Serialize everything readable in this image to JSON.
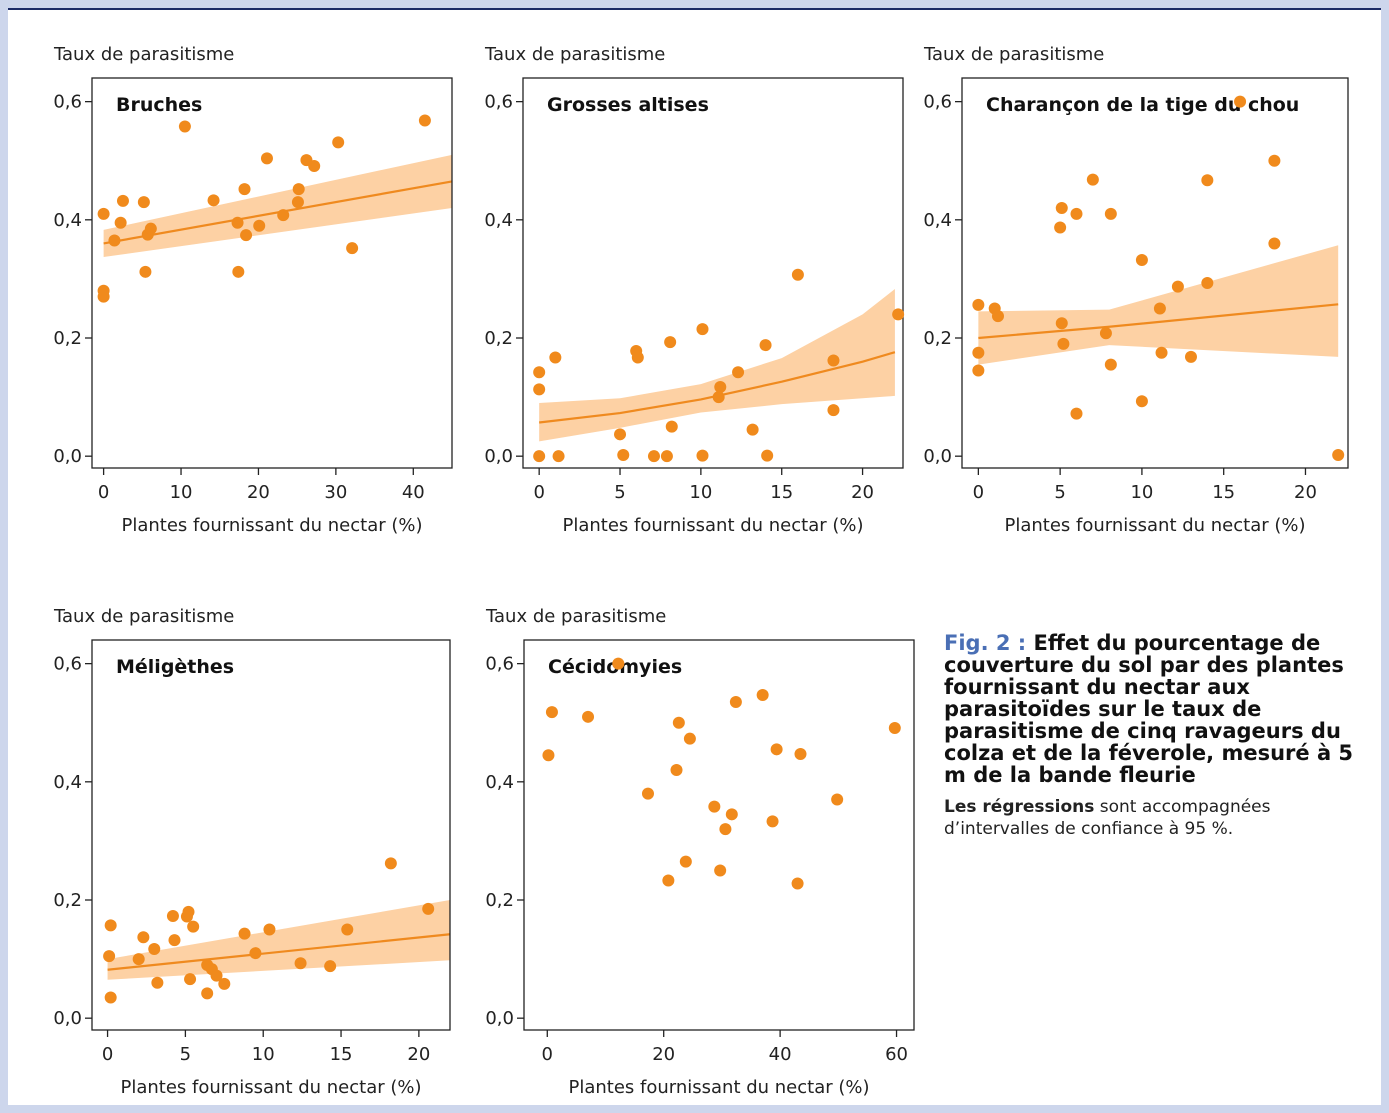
{
  "caption": {
    "label": "Fig. 2 :",
    "title": "Effet du pourcentage de couverture du sol par des plantes fournissant du nectar aux parasitoïdes sur le taux de parasitisme de cinq ravageurs du colza et de la féverole, mesuré à 5 m de la bande fleurie",
    "note_bold": "Les régressions",
    "note_rest": " sont accompagnées d’intervalles de confiance à 95 %."
  },
  "colors": {
    "points": "#f08a1c",
    "line": "#ef8a1f",
    "band": "#fdd1a4",
    "axis": "#222222"
  },
  "chart_data": [
    {
      "type": "scatter",
      "title": "Bruches",
      "ylabel": "Taux de parasitisme",
      "xlabel": "Plantes fournissant du nectar (%)",
      "xlim": [
        -1.5,
        45
      ],
      "ylim": [
        -0.02,
        0.64
      ],
      "xticks": [
        0,
        10,
        20,
        30,
        40
      ],
      "yticks": [
        0.0,
        0.2,
        0.4,
        0.6
      ],
      "ytick_labels": [
        "0,0",
        "0,2",
        "0,4",
        "0,6"
      ],
      "points": [
        [
          0,
          0.41
        ],
        [
          0,
          0.28
        ],
        [
          0,
          0.27
        ],
        [
          1.4,
          0.365
        ],
        [
          2.2,
          0.395
        ],
        [
          2.5,
          0.432
        ],
        [
          5.2,
          0.43
        ],
        [
          5.4,
          0.312
        ],
        [
          5.7,
          0.375
        ],
        [
          6.1,
          0.385
        ],
        [
          10.5,
          0.558
        ],
        [
          14.2,
          0.433
        ],
        [
          17.3,
          0.395
        ],
        [
          17.4,
          0.312
        ],
        [
          18.2,
          0.452
        ],
        [
          18.4,
          0.374
        ],
        [
          20.1,
          0.39
        ],
        [
          21.1,
          0.504
        ],
        [
          23.2,
          0.408
        ],
        [
          25.1,
          0.43
        ],
        [
          25.2,
          0.452
        ],
        [
          26.2,
          0.501
        ],
        [
          27.2,
          0.491
        ],
        [
          30.3,
          0.531
        ],
        [
          32.1,
          0.352
        ],
        [
          41.5,
          0.568
        ]
      ],
      "regression": {
        "x": [
          0,
          45
        ],
        "y": [
          0.36,
          0.465
        ],
        "lower": [
          0.337,
          0.42
        ],
        "upper": [
          0.383,
          0.51
        ]
      }
    },
    {
      "type": "scatter",
      "title": "Grosses altises",
      "ylabel": "Taux de parasitisme",
      "xlabel": "Plantes fournissant du nectar (%)",
      "xlim": [
        -1,
        22.5
      ],
      "ylim": [
        -0.02,
        0.64
      ],
      "xticks": [
        0,
        5,
        10,
        15,
        20
      ],
      "yticks": [
        0.0,
        0.2,
        0.4,
        0.6
      ],
      "ytick_labels": [
        "0,0",
        "0,2",
        "0,4",
        "0,6"
      ],
      "points": [
        [
          0,
          0.142
        ],
        [
          0,
          0.113
        ],
        [
          0,
          0.0
        ],
        [
          1,
          0.167
        ],
        [
          1.2,
          0.0
        ],
        [
          5,
          0.037
        ],
        [
          5.2,
          0.002
        ],
        [
          6,
          0.178
        ],
        [
          6.1,
          0.167
        ],
        [
          7.1,
          0.0
        ],
        [
          7.9,
          0.0
        ],
        [
          8.1,
          0.193
        ],
        [
          8.2,
          0.05
        ],
        [
          10.1,
          0.215
        ],
        [
          10.1,
          0.001
        ],
        [
          11.2,
          0.117
        ],
        [
          11.1,
          0.1
        ],
        [
          12.3,
          0.142
        ],
        [
          13.2,
          0.045
        ],
        [
          14,
          0.188
        ],
        [
          14.1,
          0.001
        ],
        [
          16,
          0.307
        ],
        [
          18.2,
          0.162
        ],
        [
          18.2,
          0.078
        ],
        [
          22.2,
          0.24
        ]
      ],
      "regression": {
        "x": [
          0,
          5,
          10,
          15,
          20,
          22
        ],
        "y": [
          0.057,
          0.073,
          0.096,
          0.126,
          0.16,
          0.176
        ],
        "lower": [
          0.025,
          0.048,
          0.074,
          0.088,
          0.098,
          0.102
        ],
        "upper": [
          0.09,
          0.098,
          0.122,
          0.166,
          0.24,
          0.283
        ]
      }
    },
    {
      "type": "scatter",
      "title": "Charançon de la tige du chou",
      "ylabel": "Taux de parasitisme",
      "xlabel": "Plantes fournissant du nectar (%)",
      "xlim": [
        -1,
        22.6
      ],
      "ylim": [
        -0.02,
        0.64
      ],
      "xticks": [
        0,
        5,
        10,
        15,
        20
      ],
      "yticks": [
        0.0,
        0.2,
        0.4,
        0.6
      ],
      "ytick_labels": [
        "0,0",
        "0,2",
        "0,4",
        "0,6"
      ],
      "points": [
        [
          0,
          0.256
        ],
        [
          0,
          0.175
        ],
        [
          0,
          0.145
        ],
        [
          1,
          0.25
        ],
        [
          1.2,
          0.237
        ],
        [
          5,
          0.387
        ],
        [
          5.1,
          0.42
        ],
        [
          5.1,
          0.225
        ],
        [
          5.2,
          0.19
        ],
        [
          6,
          0.41
        ],
        [
          6,
          0.072
        ],
        [
          7,
          0.468
        ],
        [
          7.8,
          0.208
        ],
        [
          8.1,
          0.41
        ],
        [
          8.1,
          0.155
        ],
        [
          10,
          0.332
        ],
        [
          10,
          0.093
        ],
        [
          11.1,
          0.25
        ],
        [
          11.2,
          0.175
        ],
        [
          12.2,
          0.287
        ],
        [
          13,
          0.168
        ],
        [
          14,
          0.293
        ],
        [
          14,
          0.467
        ],
        [
          16,
          0.6
        ],
        [
          18.1,
          0.5
        ],
        [
          18.1,
          0.36
        ],
        [
          22,
          0.002
        ]
      ],
      "regression": {
        "x": [
          0,
          8,
          22
        ],
        "y": [
          0.2,
          0.219,
          0.257
        ],
        "lower": [
          0.155,
          0.188,
          0.168
        ],
        "upper": [
          0.245,
          0.248,
          0.357
        ]
      }
    },
    {
      "type": "scatter",
      "title": "Méligèthes",
      "ylabel": "Taux de parasitisme",
      "xlabel": "Plantes fournissant du nectar (%)",
      "xlim": [
        -1,
        22
      ],
      "ylim": [
        -0.02,
        0.64
      ],
      "xticks": [
        0,
        5,
        10,
        15,
        20
      ],
      "yticks": [
        0.0,
        0.2,
        0.4,
        0.6
      ],
      "ytick_labels": [
        "0,0",
        "0,2",
        "0,4",
        "0,6"
      ],
      "points": [
        [
          0.1,
          0.105
        ],
        [
          0.2,
          0.157
        ],
        [
          0.2,
          0.035
        ],
        [
          2.0,
          0.1
        ],
        [
          2.3,
          0.137
        ],
        [
          3.0,
          0.117
        ],
        [
          3.2,
          0.06
        ],
        [
          4.2,
          0.173
        ],
        [
          4.3,
          0.132
        ],
        [
          5.1,
          0.172
        ],
        [
          5.2,
          0.18
        ],
        [
          5.3,
          0.066
        ],
        [
          5.5,
          0.155
        ],
        [
          6.4,
          0.09
        ],
        [
          6.4,
          0.042
        ],
        [
          6.7,
          0.083
        ],
        [
          7.0,
          0.072
        ],
        [
          7.5,
          0.058
        ],
        [
          8.8,
          0.143
        ],
        [
          9.5,
          0.11
        ],
        [
          10.4,
          0.15
        ],
        [
          12.4,
          0.093
        ],
        [
          14.3,
          0.088
        ],
        [
          15.4,
          0.15
        ],
        [
          18.2,
          0.262
        ],
        [
          20.6,
          0.185
        ]
      ],
      "regression": {
        "x": [
          0,
          22
        ],
        "y": [
          0.082,
          0.142
        ],
        "lower": [
          0.065,
          0.098
        ],
        "upper": [
          0.1,
          0.2
        ]
      }
    },
    {
      "type": "scatter",
      "title": "Cécidomyies",
      "ylabel": "Taux de parasitisme",
      "xlabel": "Plantes fournissant du nectar (%)",
      "xlim": [
        -4,
        63
      ],
      "ylim": [
        -0.02,
        0.64
      ],
      "xticks": [
        0,
        20,
        40,
        60
      ],
      "yticks": [
        0.0,
        0.2,
        0.4,
        0.6
      ],
      "ytick_labels": [
        "0,0",
        "0,2",
        "0,4",
        "0,6"
      ],
      "points": [
        [
          0.2,
          0.445
        ],
        [
          0.8,
          0.518
        ],
        [
          7,
          0.51
        ],
        [
          12.2,
          0.6
        ],
        [
          17.3,
          0.38
        ],
        [
          20.8,
          0.233
        ],
        [
          22.2,
          0.42
        ],
        [
          22.6,
          0.5
        ],
        [
          23.8,
          0.265
        ],
        [
          24.5,
          0.473
        ],
        [
          28.7,
          0.358
        ],
        [
          29.7,
          0.25
        ],
        [
          30.6,
          0.32
        ],
        [
          31.7,
          0.345
        ],
        [
          32.4,
          0.535
        ],
        [
          37,
          0.547
        ],
        [
          38.7,
          0.333
        ],
        [
          39.4,
          0.455
        ],
        [
          43,
          0.228
        ],
        [
          43.5,
          0.447
        ],
        [
          49.8,
          0.37
        ],
        [
          59.7,
          0.491
        ]
      ]
    }
  ]
}
